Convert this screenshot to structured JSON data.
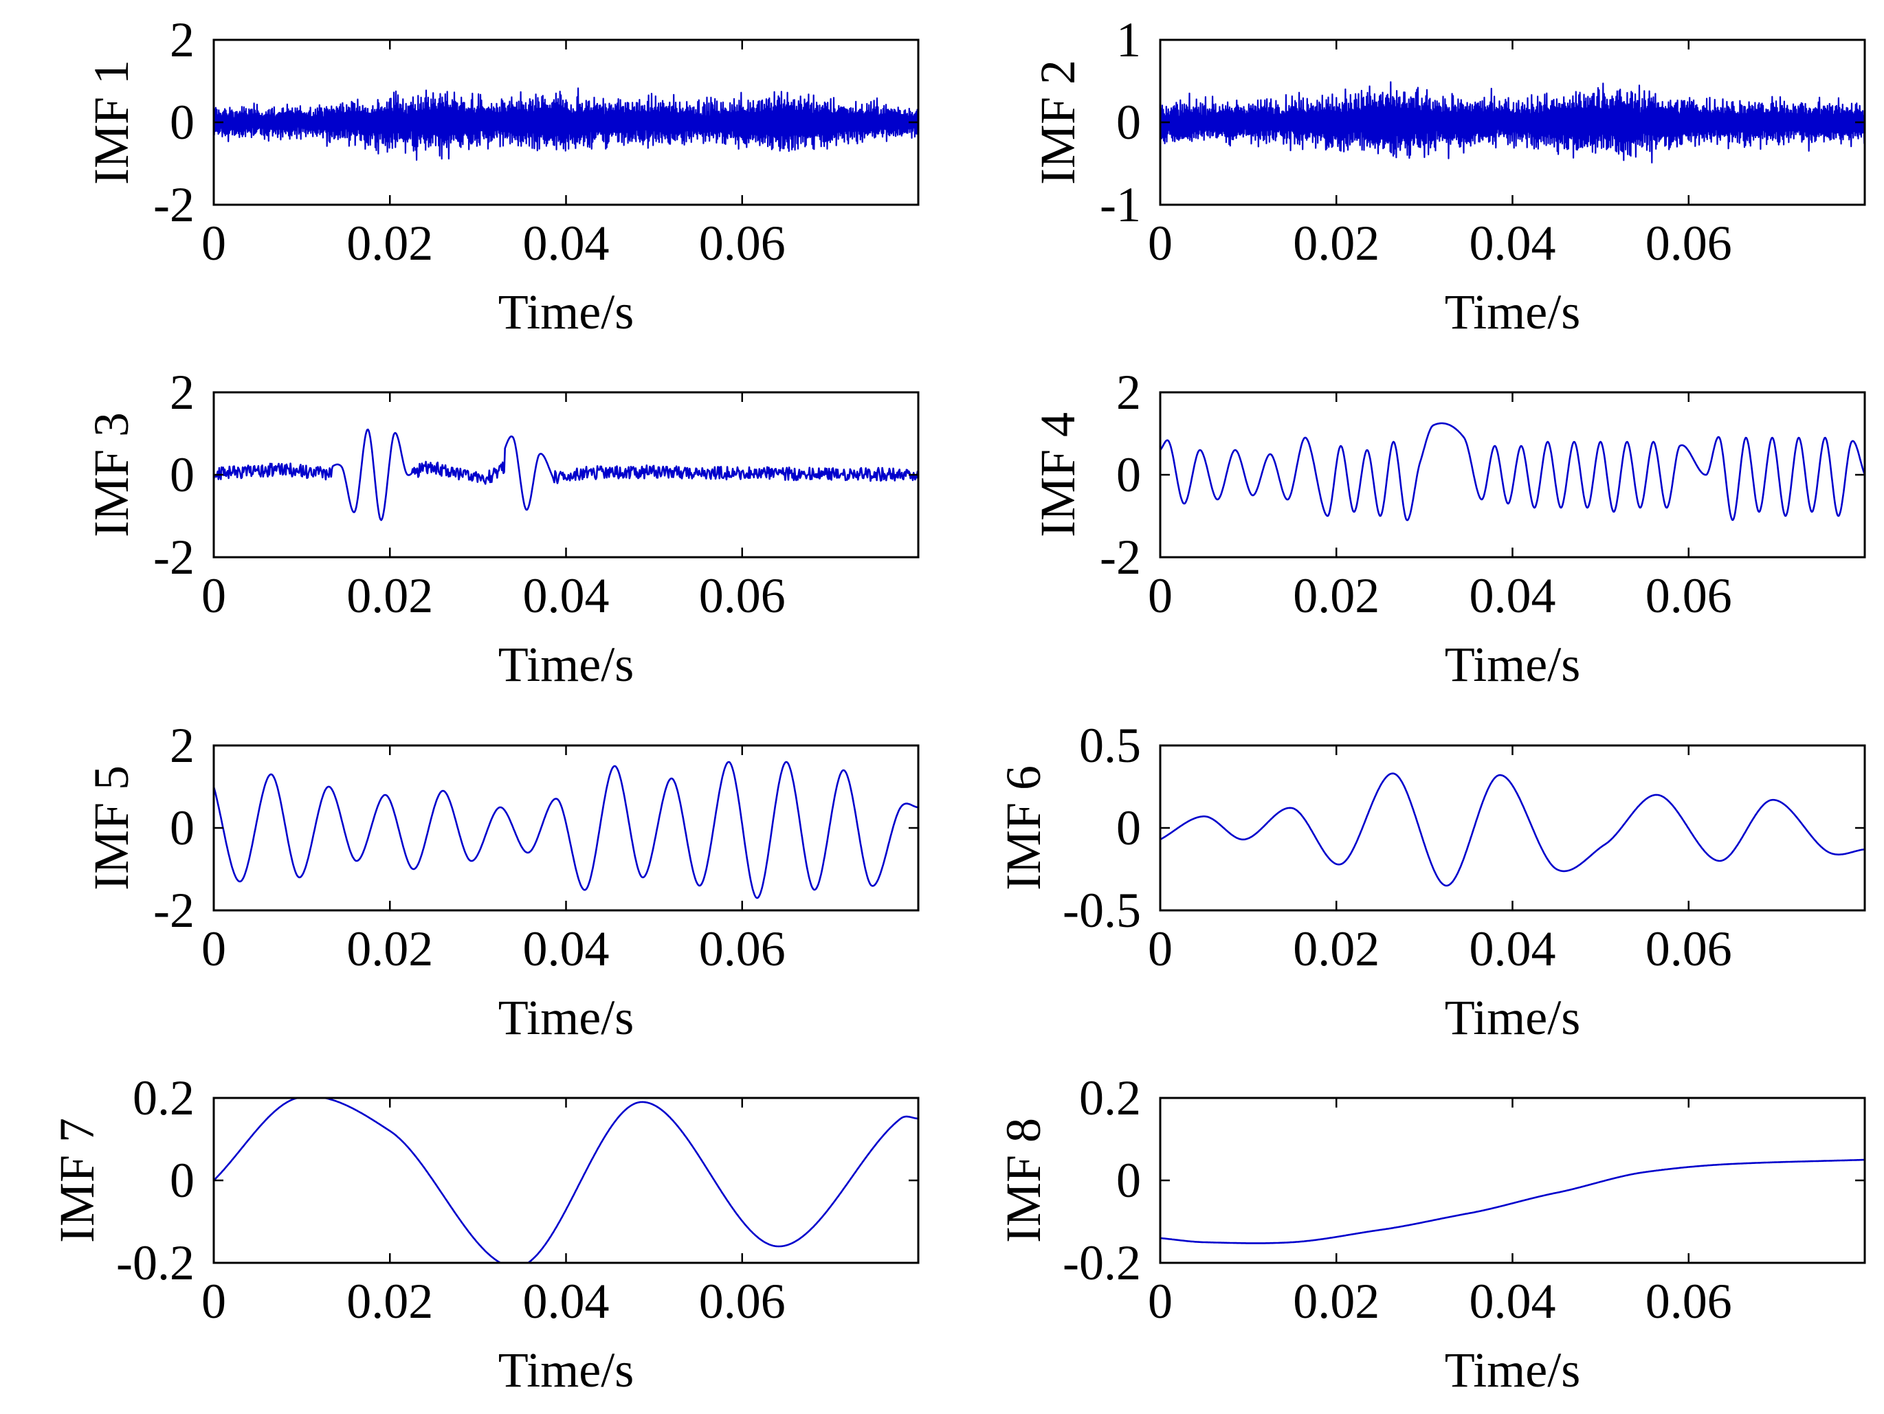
{
  "trace_color": "#0000cc",
  "frame_color": "#000000",
  "chart_data": [
    {
      "type": "line",
      "ylabel": "IMF 1",
      "xlabel": "Time/s",
      "xlim": [
        0,
        0.08
      ],
      "ylim": [
        -2,
        2
      ],
      "xticks": [
        0,
        0.02,
        0.04,
        0.06
      ],
      "xtick_labels": [
        "0",
        "0.02",
        "0.04",
        "0.06"
      ],
      "yticks": [
        -2,
        0,
        2
      ],
      "ytick_labels": [
        "-2",
        "0",
        "2"
      ],
      "grid": false,
      "style": "dense-noise",
      "series": [
        {
          "envelope": [
            [
              0,
              0.6
            ],
            [
              0.01,
              0.6
            ],
            [
              0.0195,
              1.0
            ],
            [
              0.026,
              1.2
            ],
            [
              0.032,
              0.8
            ],
            [
              0.039,
              1.1
            ],
            [
              0.045,
              0.9
            ],
            [
              0.051,
              0.9
            ],
            [
              0.057,
              0.8
            ],
            [
              0.064,
              1.2
            ],
            [
              0.072,
              0.8
            ],
            [
              0.08,
              0.6
            ]
          ]
        }
      ]
    },
    {
      "type": "line",
      "ylabel": "IMF 2",
      "xlabel": "Time/s",
      "xlim": [
        0,
        0.08
      ],
      "ylim": [
        -1,
        1
      ],
      "xticks": [
        0,
        0.02,
        0.04,
        0.06
      ],
      "xtick_labels": [
        "0",
        "0.02",
        "0.04",
        "0.06"
      ],
      "yticks": [
        -1,
        0,
        1
      ],
      "ytick_labels": [
        "-1",
        "0",
        "1"
      ],
      "grid": false,
      "style": "dense-noise",
      "series": [
        {
          "envelope": [
            [
              0,
              0.4
            ],
            [
              0.01,
              0.4
            ],
            [
              0.0265,
              0.65
            ],
            [
              0.033,
              0.5
            ],
            [
              0.04,
              0.45
            ],
            [
              0.052,
              0.7
            ],
            [
              0.06,
              0.45
            ],
            [
              0.08,
              0.4
            ]
          ]
        }
      ]
    },
    {
      "type": "line",
      "ylabel": "IMF 3",
      "xlabel": "Time/s",
      "xlim": [
        0,
        0.08
      ],
      "ylim": [
        -2,
        2
      ],
      "xticks": [
        0,
        0.02,
        0.04,
        0.06
      ],
      "xtick_labels": [
        "0",
        "0.02",
        "0.04",
        "0.06"
      ],
      "yticks": [
        -2,
        0,
        2
      ],
      "ytick_labels": [
        "-2",
        "0",
        "2"
      ],
      "grid": false,
      "style": "bursts",
      "series": [
        {
          "x": [
            0,
            0.008,
            0.0125,
            0.0145,
            0.016,
            0.0175,
            0.019,
            0.0205,
            0.022,
            0.024,
            0.027,
            0.031,
            0.0325,
            0.034,
            0.0355,
            0.037,
            0.039,
            0.042,
            0.05,
            0.06,
            0.07,
            0.08
          ],
          "y": [
            0.05,
            0.35,
            0.1,
            0.2,
            -0.9,
            1.1,
            -1.1,
            1.0,
            0.0,
            0.5,
            0.2,
            -0.2,
            0.35,
            0.9,
            -0.85,
            0.5,
            -0.2,
            0.1,
            0.2,
            0.1,
            0.05,
            0.0
          ]
        }
      ]
    },
    {
      "type": "line",
      "ylabel": "IMF 4",
      "xlabel": "Time/s",
      "xlim": [
        0,
        0.08
      ],
      "ylim": [
        -2,
        2
      ],
      "xticks": [
        0,
        0.02,
        0.04,
        0.06
      ],
      "xtick_labels": [
        "0",
        "0.02",
        "0.04",
        "0.06"
      ],
      "yticks": [
        -2,
        0,
        2
      ],
      "ytick_labels": [
        "-2",
        "0",
        "2"
      ],
      "grid": false,
      "style": "smooth",
      "series": [
        {
          "x": [
            0,
            0.001,
            0.0027,
            0.0045,
            0.0065,
            0.0085,
            0.0105,
            0.0125,
            0.0145,
            0.0165,
            0.019,
            0.0205,
            0.022,
            0.0235,
            0.025,
            0.0265,
            0.028,
            0.0295,
            0.031,
            0.0345,
            0.0365,
            0.038,
            0.0395,
            0.041,
            0.0425,
            0.044,
            0.0455,
            0.047,
            0.0485,
            0.05,
            0.0515,
            0.053,
            0.0545,
            0.056,
            0.0575,
            0.059,
            0.062,
            0.0635,
            0.065,
            0.0665,
            0.068,
            0.0695,
            0.071,
            0.0725,
            0.074,
            0.0755,
            0.077,
            0.0785,
            0.08
          ],
          "y": [
            0.6,
            0.8,
            -0.7,
            0.6,
            -0.6,
            0.6,
            -0.5,
            0.5,
            -0.6,
            0.9,
            -1.0,
            0.7,
            -0.9,
            0.6,
            -1.0,
            0.8,
            -1.1,
            0.3,
            1.2,
            0.9,
            -0.6,
            0.7,
            -0.7,
            0.7,
            -0.8,
            0.8,
            -0.8,
            0.8,
            -0.8,
            0.8,
            -0.9,
            0.8,
            -0.8,
            0.8,
            -0.8,
            0.7,
            0.0,
            0.9,
            -1.1,
            0.9,
            -0.9,
            0.9,
            -1.0,
            0.9,
            -0.9,
            0.9,
            -1.0,
            0.8,
            0.0
          ]
        }
      ]
    },
    {
      "type": "line",
      "ylabel": "IMF 5",
      "xlabel": "Time/s",
      "xlim": [
        0,
        0.08
      ],
      "ylim": [
        -2,
        2
      ],
      "xticks": [
        0,
        0.02,
        0.04,
        0.06
      ],
      "xtick_labels": [
        "0",
        "0.02",
        "0.04",
        "0.06"
      ],
      "yticks": [
        -2,
        0,
        2
      ],
      "ytick_labels": [
        "-2",
        "0",
        "2"
      ],
      "grid": false,
      "style": "smooth",
      "series": [
        {
          "x": [
            0,
            0.003,
            0.0065,
            0.0097,
            0.013,
            0.0162,
            0.0195,
            0.0227,
            0.026,
            0.0292,
            0.0325,
            0.0357,
            0.039,
            0.0422,
            0.0455,
            0.0487,
            0.052,
            0.0552,
            0.0585,
            0.0617,
            0.065,
            0.0682,
            0.0715,
            0.0747,
            0.078,
            0.08
          ],
          "y": [
            1.0,
            -1.3,
            1.3,
            -1.2,
            1.0,
            -0.8,
            0.8,
            -1.0,
            0.9,
            -0.8,
            0.5,
            -0.6,
            0.7,
            -1.5,
            1.5,
            -1.2,
            1.2,
            -1.4,
            1.6,
            -1.7,
            1.6,
            -1.5,
            1.4,
            -1.4,
            0.5,
            0.5
          ]
        }
      ]
    },
    {
      "type": "line",
      "ylabel": "IMF 6",
      "xlabel": "Time/s",
      "xlim": [
        0,
        0.08
      ],
      "ylim": [
        -0.5,
        0.5
      ],
      "xticks": [
        0,
        0.02,
        0.04,
        0.06
      ],
      "xtick_labels": [
        "0",
        "0.02",
        "0.04",
        "0.06"
      ],
      "yticks": [
        -0.5,
        0,
        0.5
      ],
      "ytick_labels": [
        "-0.5",
        "0",
        "0.5"
      ],
      "grid": false,
      "style": "smooth",
      "series": [
        {
          "x": [
            0,
            0.005,
            0.0095,
            0.015,
            0.0205,
            0.0265,
            0.0325,
            0.0385,
            0.045,
            0.0505,
            0.0565,
            0.0635,
            0.0695,
            0.076,
            0.08
          ],
          "y": [
            -0.07,
            0.07,
            -0.07,
            0.12,
            -0.22,
            0.33,
            -0.35,
            0.32,
            -0.25,
            -0.1,
            0.2,
            -0.2,
            0.17,
            -0.15,
            -0.13
          ]
        }
      ]
    },
    {
      "type": "line",
      "ylabel": "IMF 7",
      "xlabel": "Time/s",
      "xlim": [
        0,
        0.08
      ],
      "ylim": [
        -0.2,
        0.2
      ],
      "xticks": [
        0,
        0.02,
        0.04,
        0.06
      ],
      "xtick_labels": [
        "0",
        "0.02",
        "0.04",
        "0.06"
      ],
      "yticks": [
        -0.2,
        0,
        0.2
      ],
      "ytick_labels": [
        "-0.2",
        "0",
        "0.2"
      ],
      "grid": false,
      "style": "smooth",
      "series": [
        {
          "x": [
            0,
            0.0095,
            0.02,
            0.0345,
            0.0485,
            0.064,
            0.078,
            0.08
          ],
          "y": [
            0.0,
            0.2,
            0.12,
            -0.21,
            0.19,
            -0.16,
            0.15,
            0.15
          ]
        }
      ]
    },
    {
      "type": "line",
      "ylabel": "IMF 8",
      "xlabel": "Time/s",
      "xlim": [
        0,
        0.08
      ],
      "ylim": [
        -0.2,
        0.2
      ],
      "xticks": [
        0,
        0.02,
        0.04,
        0.06
      ],
      "xtick_labels": [
        "0",
        "0.02",
        "0.04",
        "0.06"
      ],
      "yticks": [
        -0.2,
        0,
        0.2
      ],
      "ytick_labels": [
        "-0.2",
        "0",
        "0.2"
      ],
      "grid": false,
      "style": "smooth",
      "series": [
        {
          "x": [
            0,
            0.005,
            0.015,
            0.025,
            0.035,
            0.045,
            0.055,
            0.065,
            0.08
          ],
          "y": [
            -0.14,
            -0.15,
            -0.15,
            -0.12,
            -0.08,
            -0.03,
            0.02,
            0.04,
            0.05
          ]
        }
      ]
    }
  ]
}
